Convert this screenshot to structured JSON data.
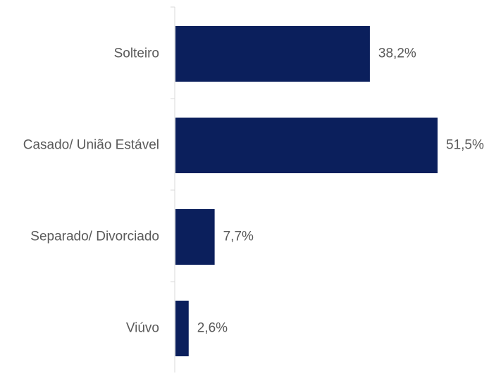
{
  "chart_data": {
    "type": "bar",
    "orientation": "horizontal",
    "categories": [
      "Solteiro",
      "Casado/ União Estável",
      "Separado/ Divorciado",
      "Viúvo"
    ],
    "values": [
      38.2,
      51.5,
      7.7,
      2.6
    ],
    "value_labels": [
      "38,2%",
      "51,5%",
      "7,7%",
      "2,6%"
    ],
    "title": "",
    "xlabel": "",
    "ylabel": "",
    "xlim": [
      0,
      51.5
    ],
    "grid": false,
    "legend": "none",
    "bar_color": "#0b1f5c",
    "label_color": "#595959",
    "axis_color": "#d9d9d9"
  }
}
